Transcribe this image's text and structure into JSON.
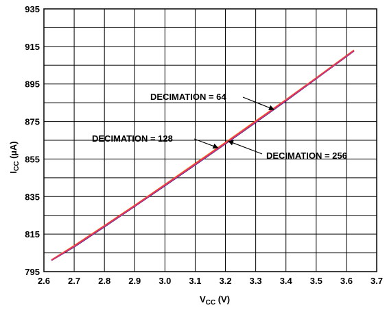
{
  "chart_data": {
    "type": "line",
    "xlabel": {
      "main": "V",
      "sub": "CC",
      "unit": " (V)"
    },
    "ylabel": {
      "main": "I",
      "sub": "CC",
      "unit": " (µA)"
    },
    "xlim": [
      2.6,
      3.7
    ],
    "ylim": [
      795,
      935
    ],
    "xticks": [
      "2.6",
      "2.7",
      "2.8",
      "2.9",
      "3.0",
      "3.1",
      "3.2",
      "3.3",
      "3.4",
      "3.5",
      "3.6",
      "3.7"
    ],
    "yticks": [
      "795",
      "815",
      "835",
      "855",
      "875",
      "895",
      "915",
      "935"
    ],
    "grid": true,
    "series": [
      {
        "name": "DECIMATION = 64",
        "color": "#2e3192",
        "x": [
          2.625,
          2.7,
          2.8,
          2.9,
          3.0,
          3.1,
          3.2,
          3.3,
          3.4,
          3.5,
          3.625
        ],
        "y": [
          801.0,
          808.2,
          818.9,
          829.8,
          840.8,
          851.9,
          863.1,
          874.5,
          886.0,
          897.8,
          912.6
        ]
      },
      {
        "name": "DECIMATION = 128",
        "color": "#ff6d00",
        "x": [
          2.625,
          2.7,
          2.8,
          2.9,
          3.0,
          3.1,
          3.2,
          3.3,
          3.4,
          3.5,
          3.625
        ],
        "y": [
          801.2,
          808.8,
          819.5,
          830.3,
          841.4,
          852.6,
          863.8,
          875.2,
          886.6,
          898.2,
          913.0
        ]
      },
      {
        "name": "DECIMATION = 256",
        "color": "#e0306e",
        "x": [
          2.625,
          2.7,
          2.8,
          2.9,
          3.0,
          3.1,
          3.2,
          3.3,
          3.4,
          3.5,
          3.625
        ],
        "y": [
          801.1,
          808.5,
          819.2,
          830.0,
          841.1,
          852.2,
          863.4,
          874.8,
          886.3,
          898.0,
          912.8
        ]
      }
    ],
    "annotations": [
      {
        "text": "DECIMATION = 64",
        "series": 0,
        "at_x": 3.36
      },
      {
        "text": "DECIMATION = 128",
        "series": 1,
        "at_x": 3.175
      },
      {
        "text": "DECIMATION = 256",
        "series": 2,
        "at_x": 3.21
      }
    ]
  }
}
